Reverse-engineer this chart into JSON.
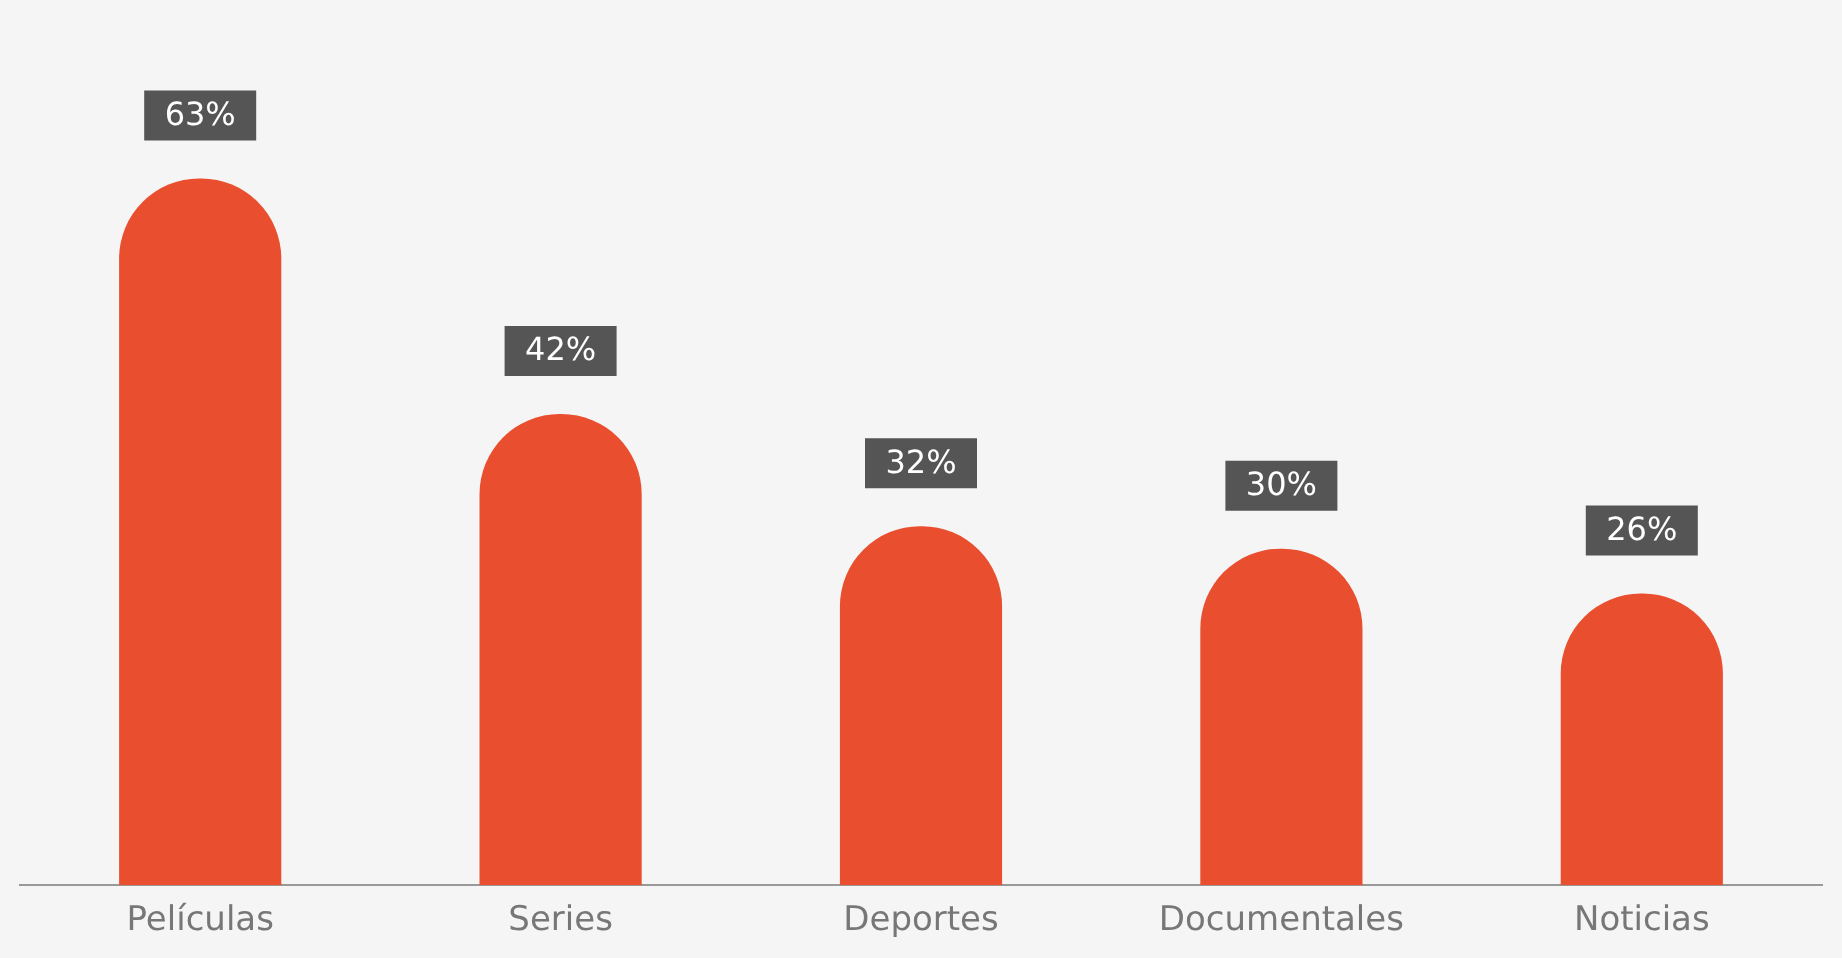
{
  "chart_data": {
    "type": "bar",
    "categories": [
      "Películas",
      "Series",
      "Deportes",
      "Documentales",
      "Noticias"
    ],
    "values": [
      63,
      42,
      32,
      30,
      26
    ],
    "color": "#e94e2e",
    "value_labels": [
      "63%",
      "42%",
      "32%",
      "30%",
      "26%"
    ],
    "grid": false,
    "legend": false
  }
}
